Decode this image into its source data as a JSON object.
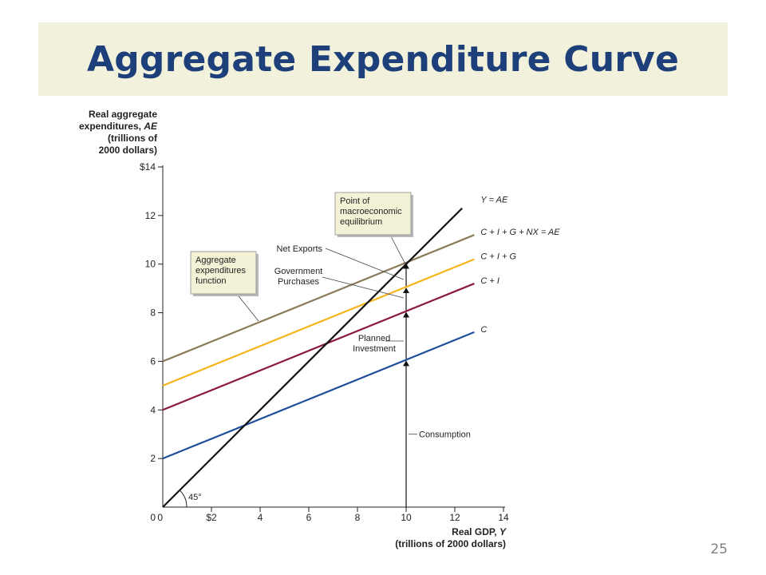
{
  "slide": {
    "title": "Aggregate Expenditure Curve",
    "page_number": "25"
  },
  "colors": {
    "title": "#1d3f7a",
    "banner": "#f2f2dc",
    "callout_bg": "#f3f1d6",
    "axis": "#231f20"
  },
  "chart_data": {
    "type": "line",
    "title": "",
    "y_axis_title": [
      "Real aggregate",
      "expenditures, AE",
      "(trillions of",
      "2000 dollars)"
    ],
    "x_axis_title": [
      "Real GDP, Y",
      "(trillions of 2000 dollars)"
    ],
    "xlim": [
      0,
      14
    ],
    "ylim": [
      0,
      14
    ],
    "x_ticks": [
      {
        "value": 0,
        "label": "0"
      },
      {
        "value": 2,
        "label": "$2"
      },
      {
        "value": 4,
        "label": "4"
      },
      {
        "value": 6,
        "label": "6"
      },
      {
        "value": 8,
        "label": "8"
      },
      {
        "value": 10,
        "label": "10"
      },
      {
        "value": 12,
        "label": "12"
      },
      {
        "value": 14,
        "label": "14"
      }
    ],
    "y_ticks": [
      {
        "value": 0,
        "label": "0"
      },
      {
        "value": 2,
        "label": "2"
      },
      {
        "value": 4,
        "label": "4"
      },
      {
        "value": 6,
        "label": "6"
      },
      {
        "value": 8,
        "label": "8"
      },
      {
        "value": 10,
        "label": "10"
      },
      {
        "value": 12,
        "label": "12"
      },
      {
        "value": 14,
        "label": "$14"
      }
    ],
    "grid": false,
    "series": [
      {
        "name": "Y = AE",
        "color": "#111111",
        "x": [
          0,
          12.3
        ],
        "y": [
          0,
          12.3
        ]
      },
      {
        "name": "C + I + G + NX = AE",
        "color": "#8c7b59",
        "x": [
          0,
          12.8
        ],
        "y": [
          6,
          11.2
        ]
      },
      {
        "name": "C + I + G",
        "color": "#f4b41a",
        "x": [
          0,
          12.8
        ],
        "y": [
          5,
          10.2
        ]
      },
      {
        "name": "C + I",
        "color": "#8b1a3c",
        "x": [
          0,
          12.8
        ],
        "y": [
          4,
          9.2
        ]
      },
      {
        "name": "C",
        "color": "#1f4f9a",
        "x": [
          0,
          12.8
        ],
        "y": [
          2,
          7.2
        ]
      }
    ],
    "angle_label": "45°",
    "arrows_at_x": 10,
    "arrows": [
      {
        "from": 0,
        "to": 6.1
      },
      {
        "from": 6.1,
        "to": 8.1
      },
      {
        "from": 8.1,
        "to": 9.1
      },
      {
        "from": 9.1,
        "to": 10.1
      }
    ],
    "annotations": {
      "equilibrium_box": [
        "Point of",
        "macroeconomic",
        "equilibrium"
      ],
      "ae_function_box": [
        "Aggregate",
        "expenditures",
        "function"
      ],
      "net_exports": "Net Exports",
      "government": [
        "Government",
        "Purchases"
      ],
      "planned_investment": [
        "Planned",
        "Investment"
      ],
      "consumption": "Consumption"
    }
  }
}
